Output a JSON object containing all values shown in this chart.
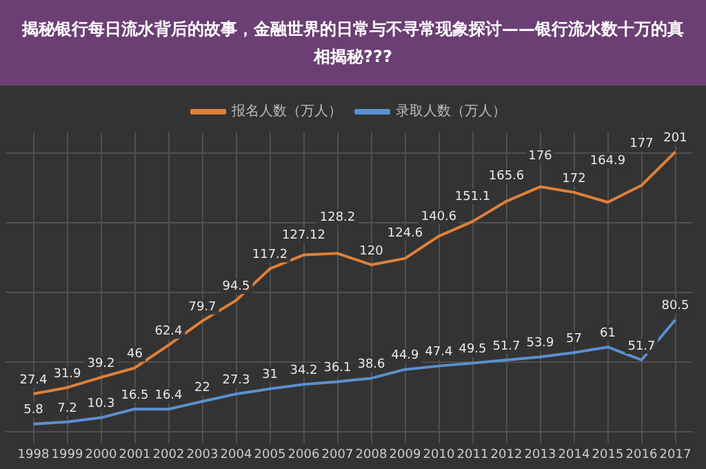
{
  "chart_data": {
    "type": "line",
    "title": "揭秘银行每日流水背后的故事，金融世界的日常与不寻常现象探讨——银行流水数十万的真相揭秘???",
    "categories": [
      "1998",
      "1999",
      "2000",
      "2001",
      "2002",
      "2003",
      "2004",
      "2005",
      "2006",
      "2007",
      "2008",
      "2009",
      "2010",
      "2011",
      "2012",
      "2013",
      "2014",
      "2015",
      "2016",
      "2017"
    ],
    "series": [
      {
        "name": "报名人数（万人）",
        "color": "#e0803a",
        "values": [
          27.4,
          31.9,
          39.2,
          46,
          62.4,
          79.7,
          94.5,
          117.2,
          127.12,
          128.2,
          120,
          124.6,
          140.6,
          151.1,
          165.6,
          176,
          172,
          164.9,
          177,
          201
        ]
      },
      {
        "name": "录取人数（万人）",
        "color": "#5a8fd0",
        "values": [
          5.8,
          7.2,
          10.3,
          16.5,
          16.4,
          22,
          27.3,
          31,
          34.2,
          36.1,
          38.6,
          44.9,
          47.4,
          49.5,
          51.7,
          53.9,
          57,
          61,
          51.7,
          80.5
        ]
      }
    ],
    "ylim": [
      0,
      215
    ],
    "yticks": [
      {
        "value": 0,
        "label": null
      },
      {
        "value": 50,
        "label": null
      },
      {
        "value": 100,
        "label": null
      },
      {
        "value": 150,
        "label": null
      },
      {
        "value": 200,
        "label": null
      }
    ],
    "tick_labels": "x",
    "grid": true,
    "legend": "top",
    "marker": "none",
    "line_style": "solid",
    "data_labels": true
  }
}
